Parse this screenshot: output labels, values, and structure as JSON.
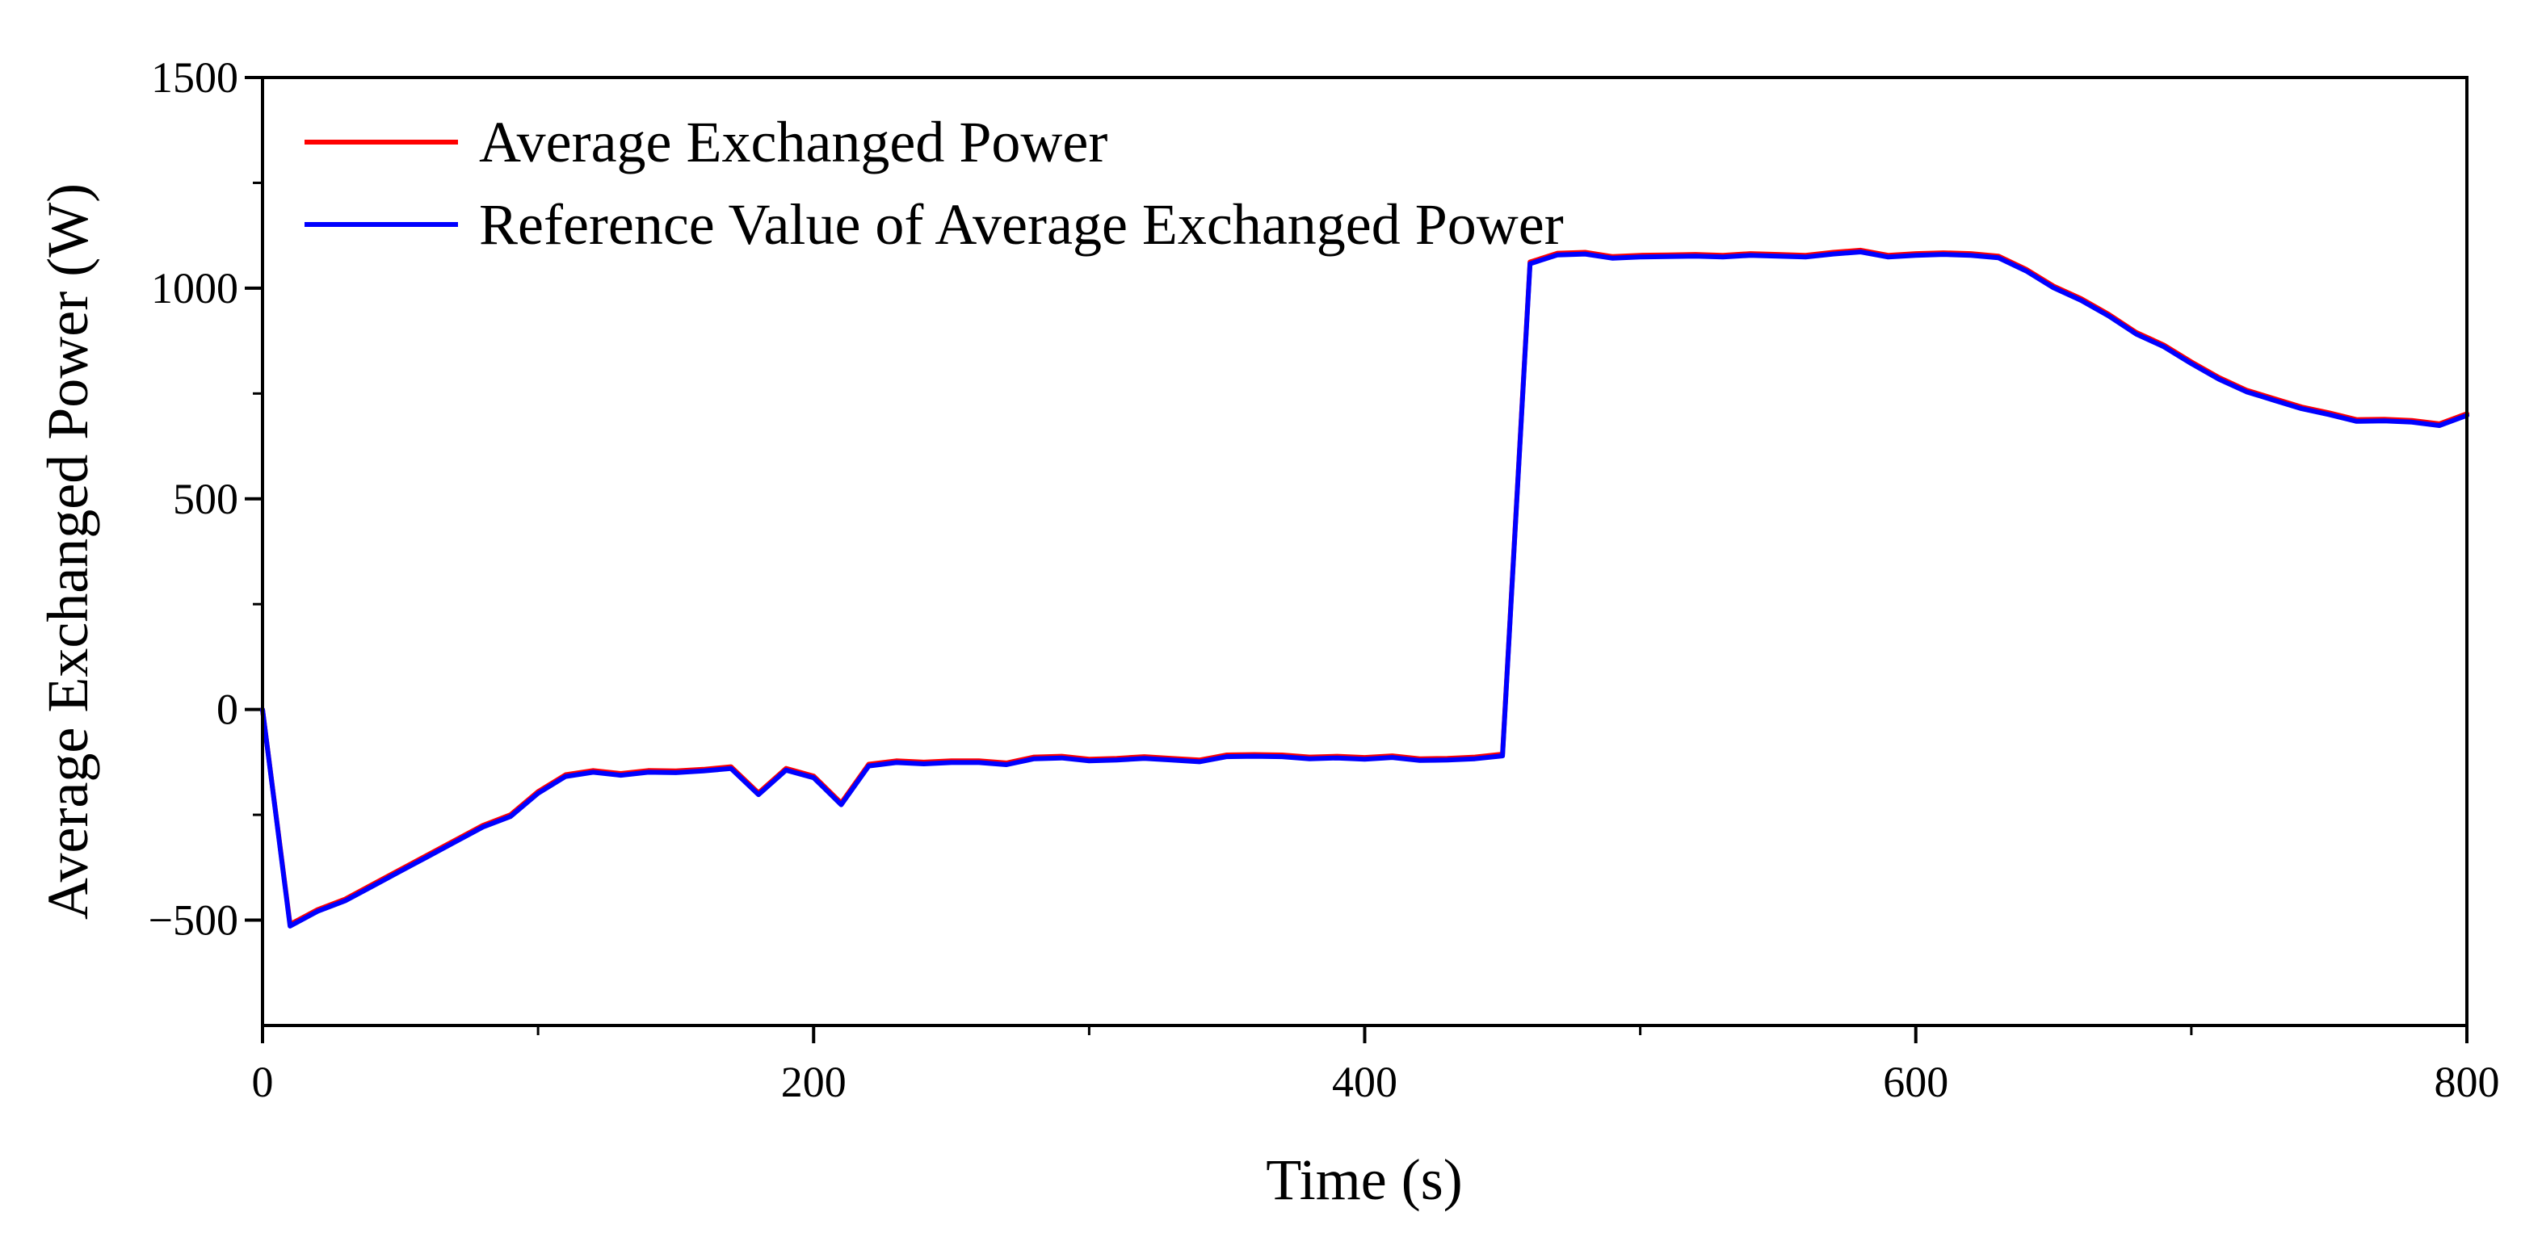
{
  "chart_data": {
    "type": "line",
    "title": "",
    "xlabel": "Time (s)",
    "ylabel": "Average Exchanged Power (W)",
    "xlim": [
      0,
      800
    ],
    "ylim": [
      -750,
      1500
    ],
    "x_ticks": [
      0,
      200,
      400,
      600,
      800
    ],
    "x_tick_labels": [
      "0",
      "200",
      "400",
      "600",
      "800"
    ],
    "y_ticks": [
      -500,
      0,
      500,
      1000,
      1500
    ],
    "y_tick_labels": [
      "−500",
      "0",
      "500",
      "1000",
      "1500"
    ],
    "grid": false,
    "legend_position": "top-left",
    "x": [
      0,
      10,
      20,
      30,
      40,
      50,
      60,
      70,
      80,
      90,
      100,
      110,
      120,
      130,
      140,
      150,
      160,
      170,
      180,
      190,
      200,
      210,
      220,
      230,
      240,
      250,
      260,
      270,
      280,
      290,
      300,
      310,
      320,
      330,
      340,
      350,
      360,
      370,
      380,
      390,
      400,
      410,
      420,
      430,
      440,
      450,
      460,
      470,
      480,
      490,
      500,
      510,
      520,
      530,
      540,
      550,
      560,
      570,
      580,
      590,
      600,
      610,
      620,
      630,
      640,
      650,
      660,
      670,
      680,
      690,
      700,
      710,
      720,
      730,
      740,
      750,
      760,
      770,
      780,
      790,
      800
    ],
    "series": [
      {
        "name": "Average Exchanged Power",
        "color": "#ff0000",
        "values": [
          0,
          -510,
          -475,
          -450,
          -415,
          -380,
          -345,
          -310,
          -275,
          -250,
          -195,
          -155,
          -145,
          -152,
          -145,
          -146,
          -142,
          -136,
          -198,
          -140,
          -158,
          -222,
          -130,
          -122,
          -125,
          -122,
          -122,
          -127,
          -113,
          -111,
          -118,
          -116,
          -112,
          -116,
          -120,
          -108,
          -107,
          -108,
          -113,
          -111,
          -114,
          -110,
          -117,
          -116,
          -113,
          -106,
          1062,
          1083,
          1085,
          1075,
          1078,
          1079,
          1080,
          1078,
          1082,
          1080,
          1078,
          1085,
          1090,
          1078,
          1082,
          1084,
          1082,
          1076,
          1045,
          1005,
          975,
          938,
          895,
          865,
          825,
          788,
          758,
          738,
          718,
          704,
          688,
          689,
          686,
          678,
          702
        ]
      },
      {
        "name": "Reference Value of Average Exchanged Power",
        "color": "#0000ff",
        "values": [
          0,
          -514,
          -479,
          -454,
          -419,
          -384,
          -349,
          -314,
          -279,
          -254,
          -199,
          -159,
          -149,
          -156,
          -149,
          -150,
          -146,
          -140,
          -202,
          -144,
          -162,
          -226,
          -134,
          -126,
          -129,
          -126,
          -126,
          -131,
          -117,
          -115,
          -122,
          -120,
          -116,
          -120,
          -124,
          -112,
          -111,
          -112,
          -117,
          -115,
          -118,
          -114,
          -121,
          -120,
          -117,
          -110,
          1058,
          1079,
          1081,
          1071,
          1074,
          1075,
          1076,
          1074,
          1078,
          1076,
          1074,
          1081,
          1086,
          1074,
          1078,
          1080,
          1078,
          1072,
          1041,
          1001,
          971,
          934,
          891,
          861,
          821,
          784,
          754,
          734,
          714,
          700,
          684,
          685,
          682,
          674,
          698
        ]
      }
    ]
  }
}
